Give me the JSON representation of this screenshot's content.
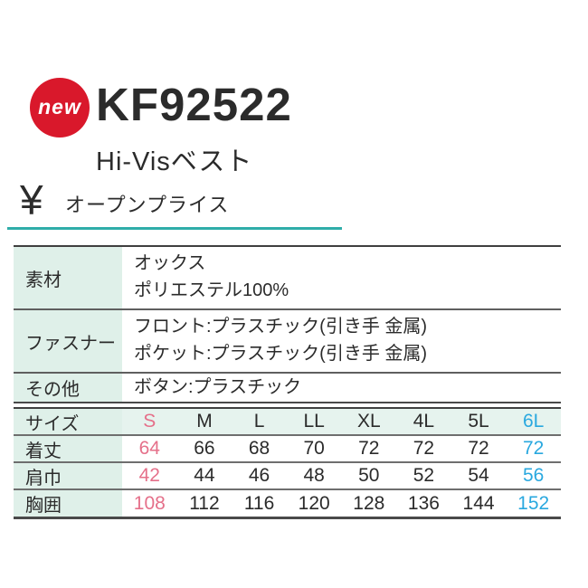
{
  "product": {
    "badge_label": "new",
    "code": "KF92522",
    "name": "Hi-Visベスト"
  },
  "price": {
    "currency_symbol": "¥",
    "label": "オープンプライス"
  },
  "colors": {
    "badge_red": "#d9182b",
    "accent_teal": "#2fada9",
    "mint_label": "#dff0e9",
    "mint_header": "#e6f3ee",
    "highlight_pink": "#e5708a",
    "highlight_cyan": "#29a8df",
    "text": "#2b2b2b"
  },
  "spec_table": {
    "rows": [
      {
        "label": "素材",
        "lines": [
          "オックス",
          "ポリエステル100%"
        ]
      },
      {
        "label": "ファスナー",
        "lines": [
          "フロント:プラスチック(引き手 金属)",
          "ポケット:プラスチック(引き手 金属)"
        ]
      },
      {
        "label": "その他",
        "lines": [
          "ボタン:プラスチック"
        ]
      }
    ]
  },
  "size_table": {
    "header_label": "サイズ",
    "sizes": [
      "S",
      "M",
      "L",
      "LL",
      "XL",
      "4L",
      "5L",
      "6L"
    ],
    "rows": [
      {
        "label": "着丈",
        "values": [
          "64",
          "66",
          "68",
          "70",
          "72",
          "72",
          "72",
          "72"
        ]
      },
      {
        "label": "肩巾",
        "values": [
          "42",
          "44",
          "46",
          "48",
          "50",
          "52",
          "54",
          "56"
        ]
      },
      {
        "label": "胸囲",
        "values": [
          "108",
          "112",
          "116",
          "120",
          "128",
          "136",
          "144",
          "152"
        ]
      }
    ]
  }
}
